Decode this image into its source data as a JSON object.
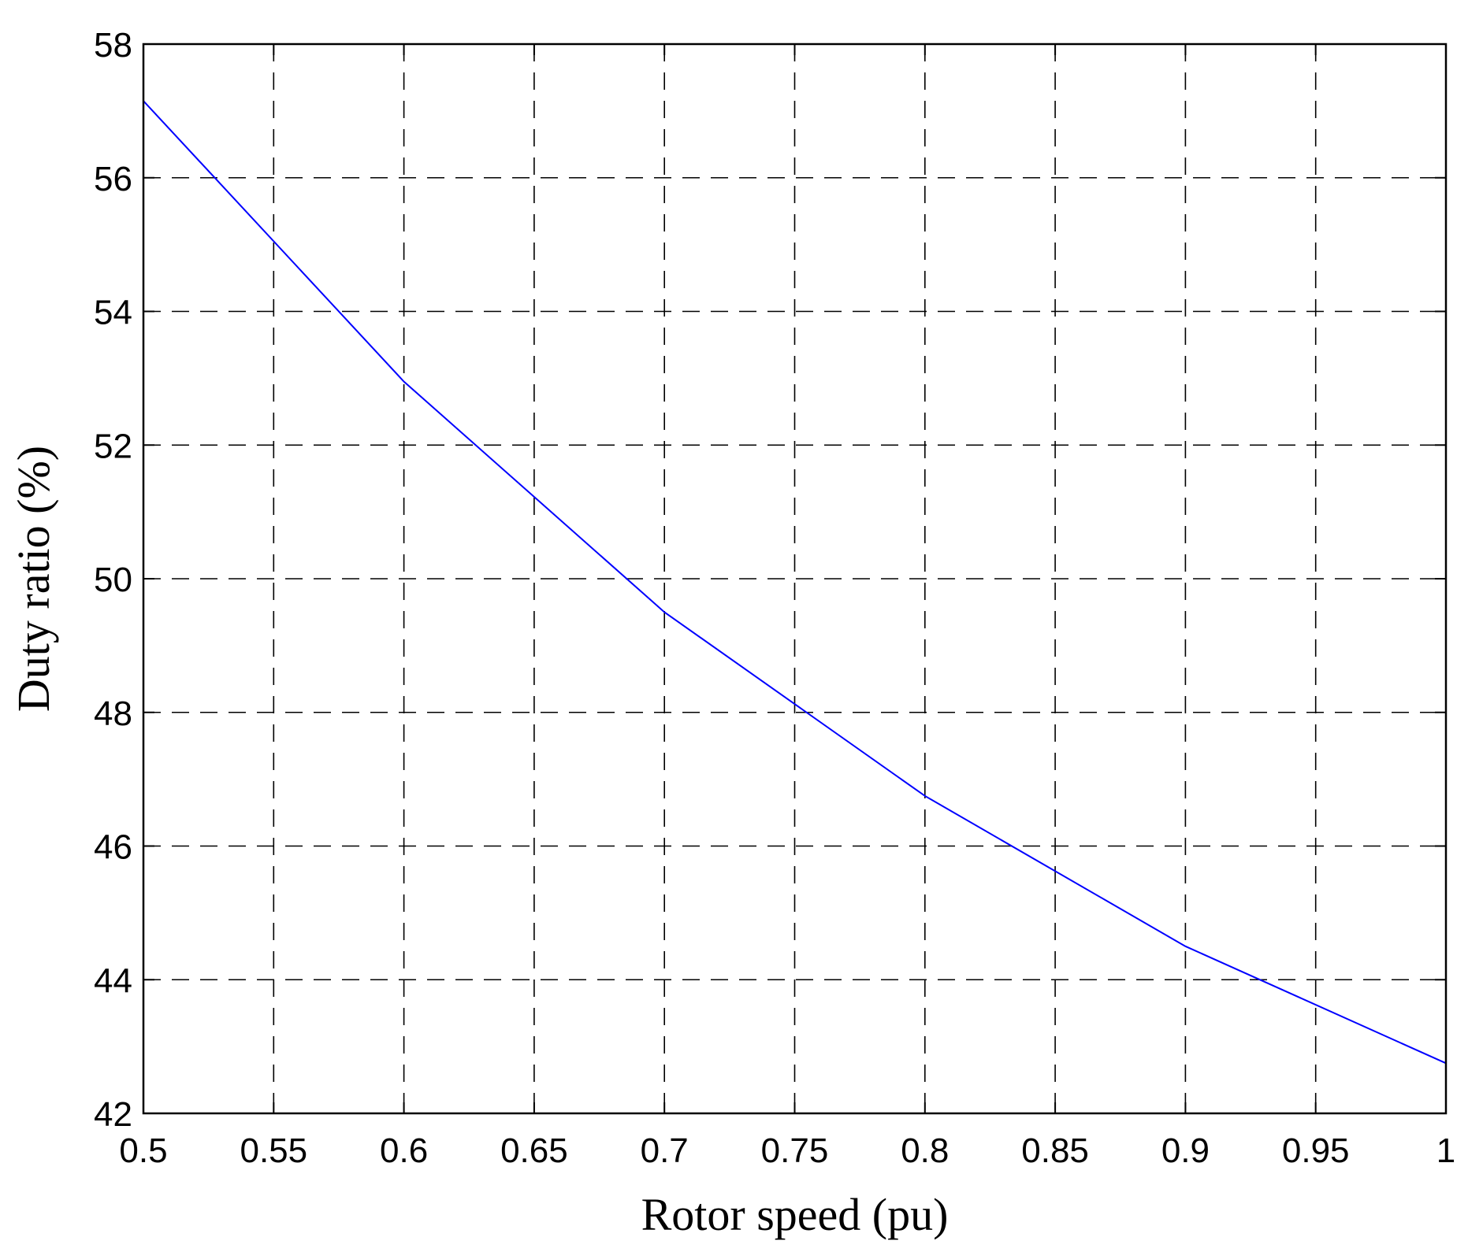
{
  "chart_data": {
    "type": "line",
    "title": "",
    "xlabel": "Rotor speed (pu)",
    "ylabel": "Duty ratio (%)",
    "xlim": [
      0.5,
      1
    ],
    "ylim": [
      42,
      58
    ],
    "xticks": [
      0.5,
      0.55,
      0.6,
      0.65,
      0.7,
      0.75,
      0.8,
      0.85,
      0.9,
      0.95,
      1
    ],
    "xtick_labels": [
      "0.5",
      "0.55",
      "0.6",
      "0.65",
      "0.7",
      "0.75",
      "0.8",
      "0.85",
      "0.9",
      "0.95",
      "1"
    ],
    "yticks": [
      42,
      44,
      46,
      48,
      50,
      52,
      54,
      56,
      58
    ],
    "ytick_labels": [
      "42",
      "44",
      "46",
      "48",
      "50",
      "52",
      "54",
      "56",
      "58"
    ],
    "grid": true,
    "grid_style": "dashed",
    "series": [
      {
        "color": "#0000ff",
        "x": [
          0.5,
          0.6,
          0.7,
          0.8,
          0.9,
          1.0
        ],
        "y": [
          57.15,
          52.95,
          49.5,
          46.75,
          44.5,
          42.75
        ]
      }
    ]
  }
}
